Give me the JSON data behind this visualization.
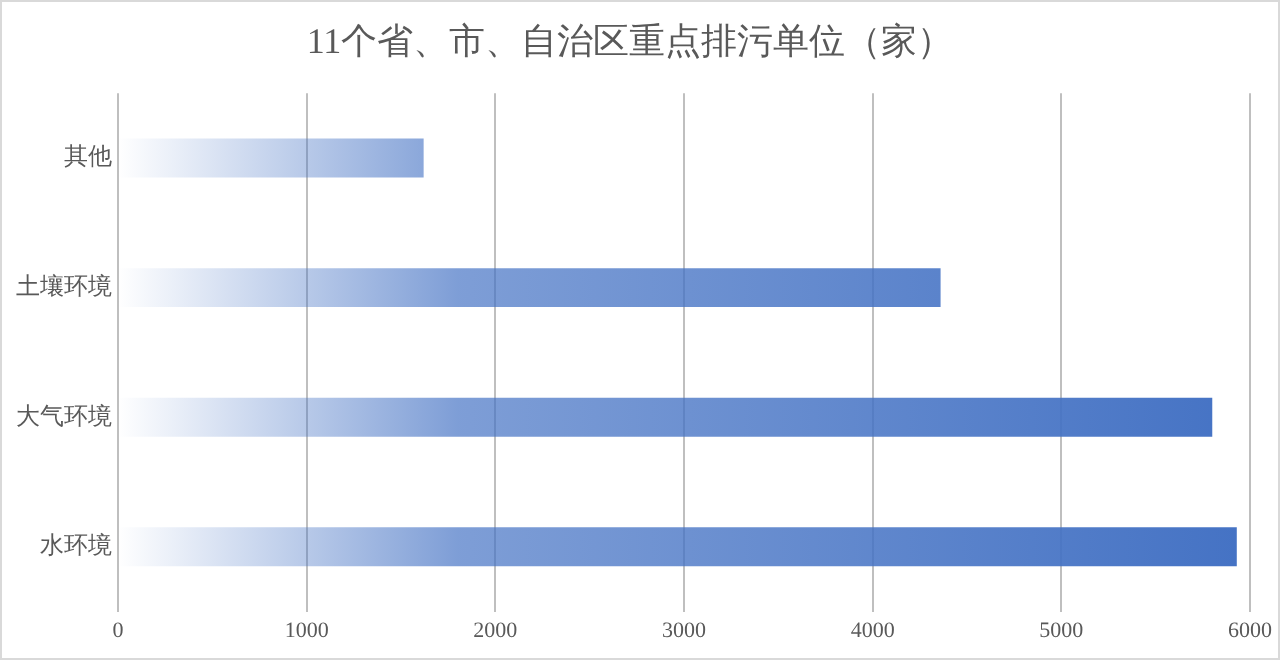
{
  "chart_data": {
    "type": "bar",
    "orientation": "horizontal",
    "title": "11个省、市、自治区重点排污单位（家）",
    "categories": [
      "其他",
      "土壤环境",
      "大气环境",
      "水环境"
    ],
    "values": [
      1620,
      4360,
      5800,
      5930
    ],
    "color": "#4472c4",
    "xlim": [
      0,
      6000
    ],
    "xticks": [
      0,
      1000,
      2000,
      3000,
      4000,
      5000,
      6000
    ],
    "grid": "x",
    "legend": false
  }
}
